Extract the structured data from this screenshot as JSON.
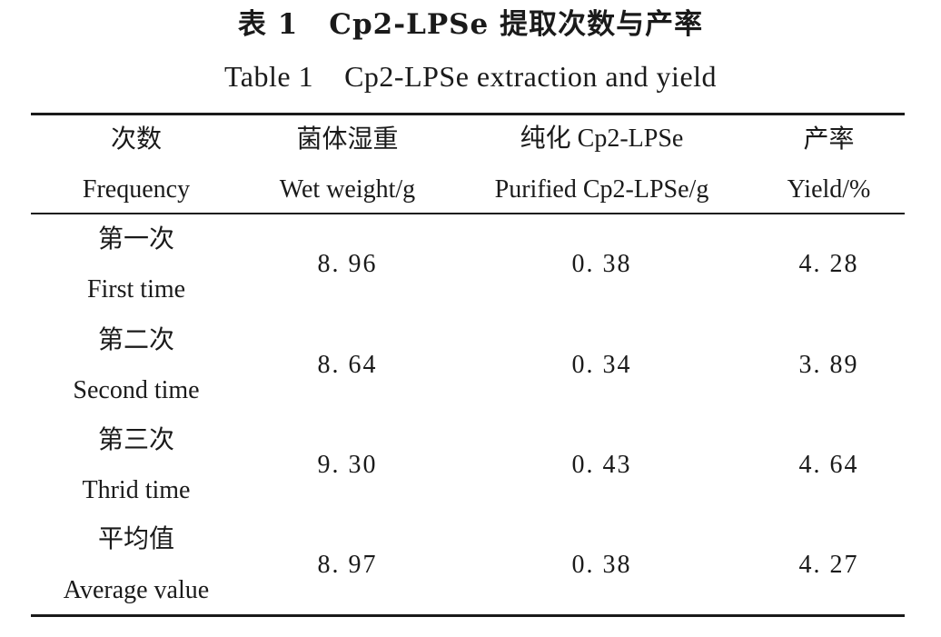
{
  "title": {
    "cn_label": "表 1",
    "cn_text": "Cp2-LPSe 提取次数与产率",
    "en_label": "Table 1",
    "en_text": "Cp2-LPSe extraction and yield"
  },
  "columns": [
    {
      "cn": "次数",
      "en": "Frequency"
    },
    {
      "cn": "菌体湿重",
      "en": "Wet weight/g"
    },
    {
      "cn": "纯化 Cp2-LPSe",
      "en": "Purified Cp2-LPSe/g"
    },
    {
      "cn": "产率",
      "en": "Yield/%"
    }
  ],
  "rows": [
    {
      "cn": "第一次",
      "en": "First time",
      "wet": "8. 96",
      "purified": "0. 38",
      "yield": "4. 28"
    },
    {
      "cn": "第二次",
      "en": "Second time",
      "wet": "8. 64",
      "purified": "0. 34",
      "yield": "3. 89"
    },
    {
      "cn": "第三次",
      "en": "Thrid time",
      "wet": "9. 30",
      "purified": "0. 43",
      "yield": "4. 64"
    },
    {
      "cn": "平均值",
      "en": "Average value",
      "wet": "8. 97",
      "purified": "0. 38",
      "yield": "4. 27"
    }
  ]
}
